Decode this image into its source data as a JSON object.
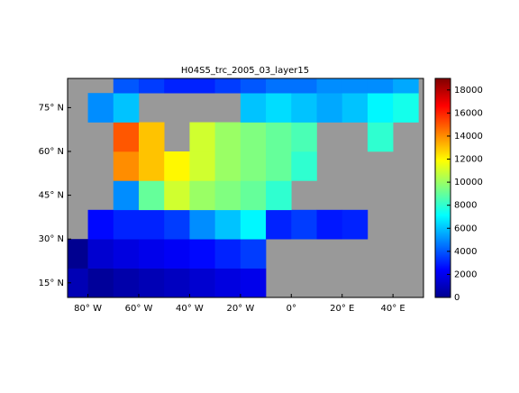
{
  "chart_data": {
    "type": "heatmap",
    "title": "H04S5_trc_2005_03_layer15",
    "x": [
      -85,
      -75,
      -65,
      -55,
      -45,
      -35,
      -25,
      -15,
      -5,
      5,
      15,
      25,
      35,
      45
    ],
    "y": [
      15,
      25,
      35,
      45,
      55,
      65,
      75,
      85
    ],
    "values": [
      [
        1000,
        500,
        800,
        1000,
        1200,
        1500,
        1800,
        2000,
        null,
        null,
        null,
        null,
        null,
        null
      ],
      [
        300,
        1500,
        1800,
        2000,
        2200,
        2500,
        3000,
        3500,
        null,
        null,
        null,
        null,
        null,
        null
      ],
      [
        null,
        2500,
        3000,
        3000,
        3500,
        5000,
        6000,
        7000,
        3000,
        3500,
        2800,
        3000,
        null,
        null
      ],
      [
        null,
        null,
        5000,
        9000,
        11000,
        10000,
        9500,
        9000,
        8000,
        null,
        null,
        null,
        null,
        null
      ],
      [
        null,
        null,
        14000,
        13000,
        12000,
        11000,
        10000,
        9500,
        9000,
        8000,
        null,
        null,
        null,
        null
      ],
      [
        null,
        null,
        15000,
        13000,
        null,
        11000,
        10000,
        9500,
        9000,
        8500,
        null,
        null,
        8000,
        null
      ],
      [
        null,
        5000,
        6000,
        null,
        null,
        null,
        null,
        6000,
        6500,
        6000,
        5500,
        6000,
        7000,
        7500
      ],
      [
        null,
        null,
        4000,
        3500,
        3000,
        3000,
        3500,
        4000,
        4500,
        4500,
        5000,
        5000,
        5000,
        5500
      ]
    ],
    "xlim": [
      -88,
      52
    ],
    "ylim": [
      10,
      85
    ],
    "xticks": [
      {
        "value": -80,
        "label": "80° W"
      },
      {
        "value": -60,
        "label": "60° W"
      },
      {
        "value": -40,
        "label": "40° W"
      },
      {
        "value": -20,
        "label": "20° W"
      },
      {
        "value": 0,
        "label": "0°"
      },
      {
        "value": 20,
        "label": "20° E"
      },
      {
        "value": 40,
        "label": "40° E"
      }
    ],
    "yticks": [
      {
        "value": 15,
        "label": "15° N"
      },
      {
        "value": 30,
        "label": "30° N"
      },
      {
        "value": 45,
        "label": "45° N"
      },
      {
        "value": 60,
        "label": "60° N"
      },
      {
        "value": 75,
        "label": "75° N"
      }
    ],
    "colorbar": {
      "lim": [
        0,
        19000
      ],
      "ticks": [
        0,
        2000,
        4000,
        6000,
        8000,
        10000,
        12000,
        14000,
        16000,
        18000
      ]
    }
  }
}
